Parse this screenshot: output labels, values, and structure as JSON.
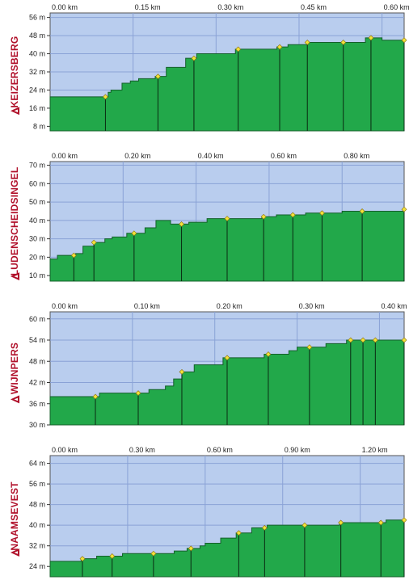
{
  "colors": {
    "plot_bg": "#b9cdee",
    "grid": "#8aa2d6",
    "fill": "#22a84a",
    "stroke": "#14602a",
    "marker": "#f2e33a",
    "label": "#b0102a"
  },
  "chart_data": [
    {
      "type": "area",
      "name": "KEIZERSBERG",
      "xticks": [
        "0.00 km",
        "0.15 km",
        "0.30 km",
        "0.45 km",
        "0.60 km"
      ],
      "xtick_values": [
        0,
        0.15,
        0.3,
        0.45,
        0.6
      ],
      "xlim": [
        0,
        0.64
      ],
      "ylabels": [
        "56 m",
        "48 m",
        "40 m",
        "32 m",
        "24 m",
        "16 m",
        "8 m"
      ],
      "ytick_values": [
        56,
        48,
        40,
        32,
        24,
        16,
        8
      ],
      "ylim": [
        6,
        58
      ],
      "x": [
        0,
        0.1,
        0.105,
        0.11,
        0.13,
        0.145,
        0.16,
        0.19,
        0.21,
        0.245,
        0.265,
        0.29,
        0.335,
        0.365,
        0.41,
        0.43,
        0.465,
        0.5,
        0.53,
        0.57,
        0.6,
        0.62,
        0.64
      ],
      "y": [
        21,
        21,
        23,
        24,
        27,
        28,
        29,
        30,
        34,
        38,
        40,
        40,
        42,
        42,
        43,
        44,
        45,
        45,
        45,
        47,
        46,
        46,
        46
      ],
      "markers": [
        0.1,
        0.195,
        0.26,
        0.34,
        0.415,
        0.465,
        0.53,
        0.58,
        0.64
      ]
    },
    {
      "type": "area",
      "name": "LUDENSCHEIDSINGEL",
      "xticks": [
        "0.00 km",
        "0.20 km",
        "0.40 km",
        "0.60 km",
        "0.80 km"
      ],
      "xtick_values": [
        0,
        0.2,
        0.4,
        0.6,
        0.8
      ],
      "xlim": [
        0,
        0.97
      ],
      "ylabels": [
        "70 m",
        "60 m",
        "50 m",
        "40 m",
        "30 m",
        "20 m",
        "10 m"
      ],
      "ytick_values": [
        70,
        60,
        50,
        40,
        30,
        20,
        10
      ],
      "ylim": [
        7,
        72
      ],
      "x": [
        0,
        0.02,
        0.06,
        0.07,
        0.09,
        0.12,
        0.15,
        0.17,
        0.21,
        0.24,
        0.26,
        0.29,
        0.33,
        0.38,
        0.43,
        0.48,
        0.53,
        0.58,
        0.62,
        0.66,
        0.7,
        0.75,
        0.8,
        0.86,
        0.9,
        0.97
      ],
      "y": [
        19,
        21,
        21,
        22,
        26,
        28,
        30,
        31,
        33,
        33,
        36,
        40,
        38,
        39,
        41,
        41,
        41,
        42,
        43,
        43,
        44,
        44,
        45,
        45,
        45,
        46
      ],
      "markers": [
        0.065,
        0.12,
        0.23,
        0.36,
        0.485,
        0.585,
        0.665,
        0.745,
        0.855,
        0.97
      ]
    },
    {
      "type": "area",
      "name": "WIJNPERS",
      "xticks": [
        "0.00 km",
        "0.10 km",
        "0.20 km",
        "0.30 km",
        "0.40 km"
      ],
      "xtick_values": [
        0,
        0.1,
        0.2,
        0.3,
        0.4
      ],
      "xlim": [
        0,
        0.43
      ],
      "ylabels": [
        "60 m",
        "54 m",
        "48 m",
        "42 m",
        "36 m",
        "30 m"
      ],
      "ytick_values": [
        60,
        54,
        48,
        42,
        36,
        30
      ],
      "ylim": [
        30,
        62
      ],
      "x": [
        0,
        0.055,
        0.06,
        0.11,
        0.12,
        0.14,
        0.15,
        0.16,
        0.175,
        0.21,
        0.22,
        0.26,
        0.28,
        0.29,
        0.3,
        0.31,
        0.335,
        0.36,
        0.37,
        0.385,
        0.4,
        0.43
      ],
      "y": [
        38,
        38,
        39,
        39,
        40,
        41,
        43,
        45,
        47,
        49,
        49,
        50,
        50,
        51,
        52,
        52,
        53,
        54,
        54,
        54,
        54,
        54
      ],
      "markers": [
        0.055,
        0.107,
        0.16,
        0.215,
        0.265,
        0.315,
        0.365,
        0.38,
        0.395,
        0.43
      ]
    },
    {
      "type": "area",
      "name": "NAAMSEVEST",
      "xticks": [
        "0.00 km",
        "0.30 km",
        "0.60 km",
        "0.90 km",
        "1.20 km"
      ],
      "xtick_values": [
        0,
        0.3,
        0.6,
        0.9,
        1.2
      ],
      "xlim": [
        0,
        1.37
      ],
      "ylabels": [
        "64 m",
        "56 m",
        "48 m",
        "40 m",
        "32 m",
        "24 m"
      ],
      "ytick_values": [
        64,
        56,
        48,
        40,
        32,
        24
      ],
      "ylim": [
        20,
        67
      ],
      "x": [
        0,
        0.12,
        0.18,
        0.28,
        0.36,
        0.48,
        0.53,
        0.58,
        0.6,
        0.66,
        0.72,
        0.78,
        0.84,
        0.91,
        1.0,
        1.12,
        1.18,
        1.25,
        1.3,
        1.37
      ],
      "y": [
        26,
        27,
        28,
        29,
        29,
        30,
        31,
        32,
        33,
        35,
        37,
        39,
        40,
        40,
        40,
        41,
        41,
        41,
        42,
        42
      ],
      "markers": [
        0.125,
        0.24,
        0.4,
        0.545,
        0.73,
        0.83,
        0.985,
        1.125,
        1.28,
        1.37
      ]
    }
  ]
}
